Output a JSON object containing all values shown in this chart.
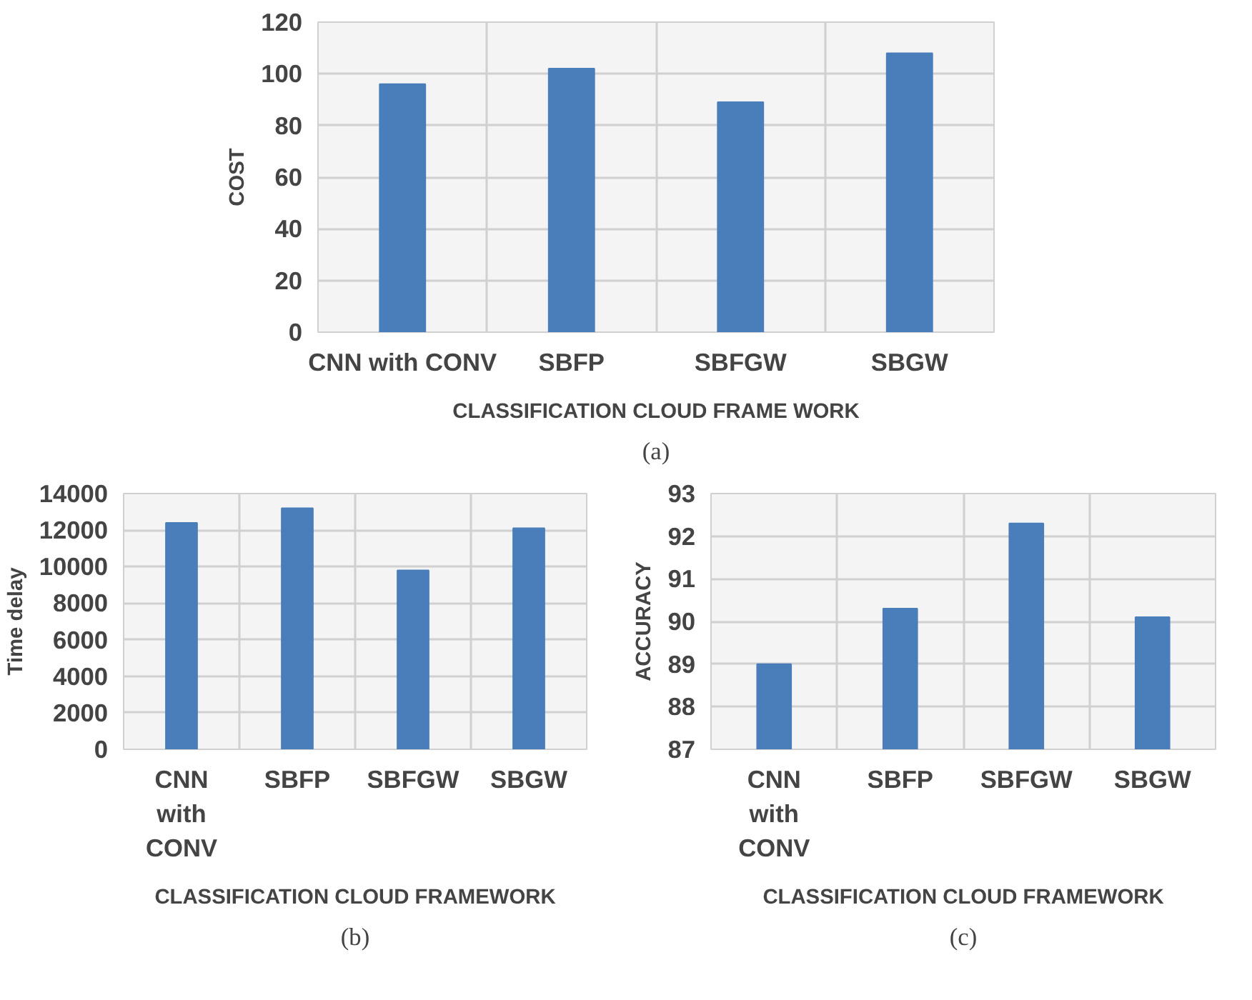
{
  "chart_data": [
    {
      "type": "bar",
      "categories": [
        "CNN with CONV",
        "SBFP",
        "SBFGW",
        "SBGW"
      ],
      "values": [
        96,
        102,
        89,
        108
      ],
      "color": "#4a7ebb",
      "ylabel": "COST",
      "xlabel": "CLASSIFICATION CLOUD FRAME WORK",
      "ylim": [
        0,
        120
      ],
      "yticks": [
        0,
        20,
        40,
        60,
        80,
        100,
        120
      ],
      "grid": true,
      "annotations": [
        "(a)"
      ]
    },
    {
      "type": "bar",
      "categories": [
        "CNN with CONV",
        "SBFP",
        "SBFGW",
        "SBGW"
      ],
      "values": [
        12400,
        13200,
        9800,
        12100
      ],
      "color": "#4a7ebb",
      "ylabel": "Time delay",
      "xlabel": "CLASSIFICATION CLOUD FRAMEWORK",
      "ylim": [
        0,
        14000
      ],
      "yticks": [
        0,
        2000,
        4000,
        6000,
        8000,
        10000,
        12000,
        14000
      ],
      "grid": true,
      "annotations": [
        "(b)"
      ]
    },
    {
      "type": "bar",
      "categories": [
        "CNN with CONV",
        "SBFP",
        "SBFGW",
        "SBGW"
      ],
      "values": [
        89.0,
        90.3,
        92.3,
        90.1
      ],
      "color": "#4a7ebb",
      "ylabel": "ACCURACY",
      "xlabel": "CLASSIFICATION CLOUD FRAMEWORK",
      "ylim": [
        87,
        93
      ],
      "yticks": [
        87,
        88,
        89,
        90,
        91,
        92,
        93
      ],
      "grid": true,
      "annotations": [
        "(c)"
      ]
    }
  ]
}
